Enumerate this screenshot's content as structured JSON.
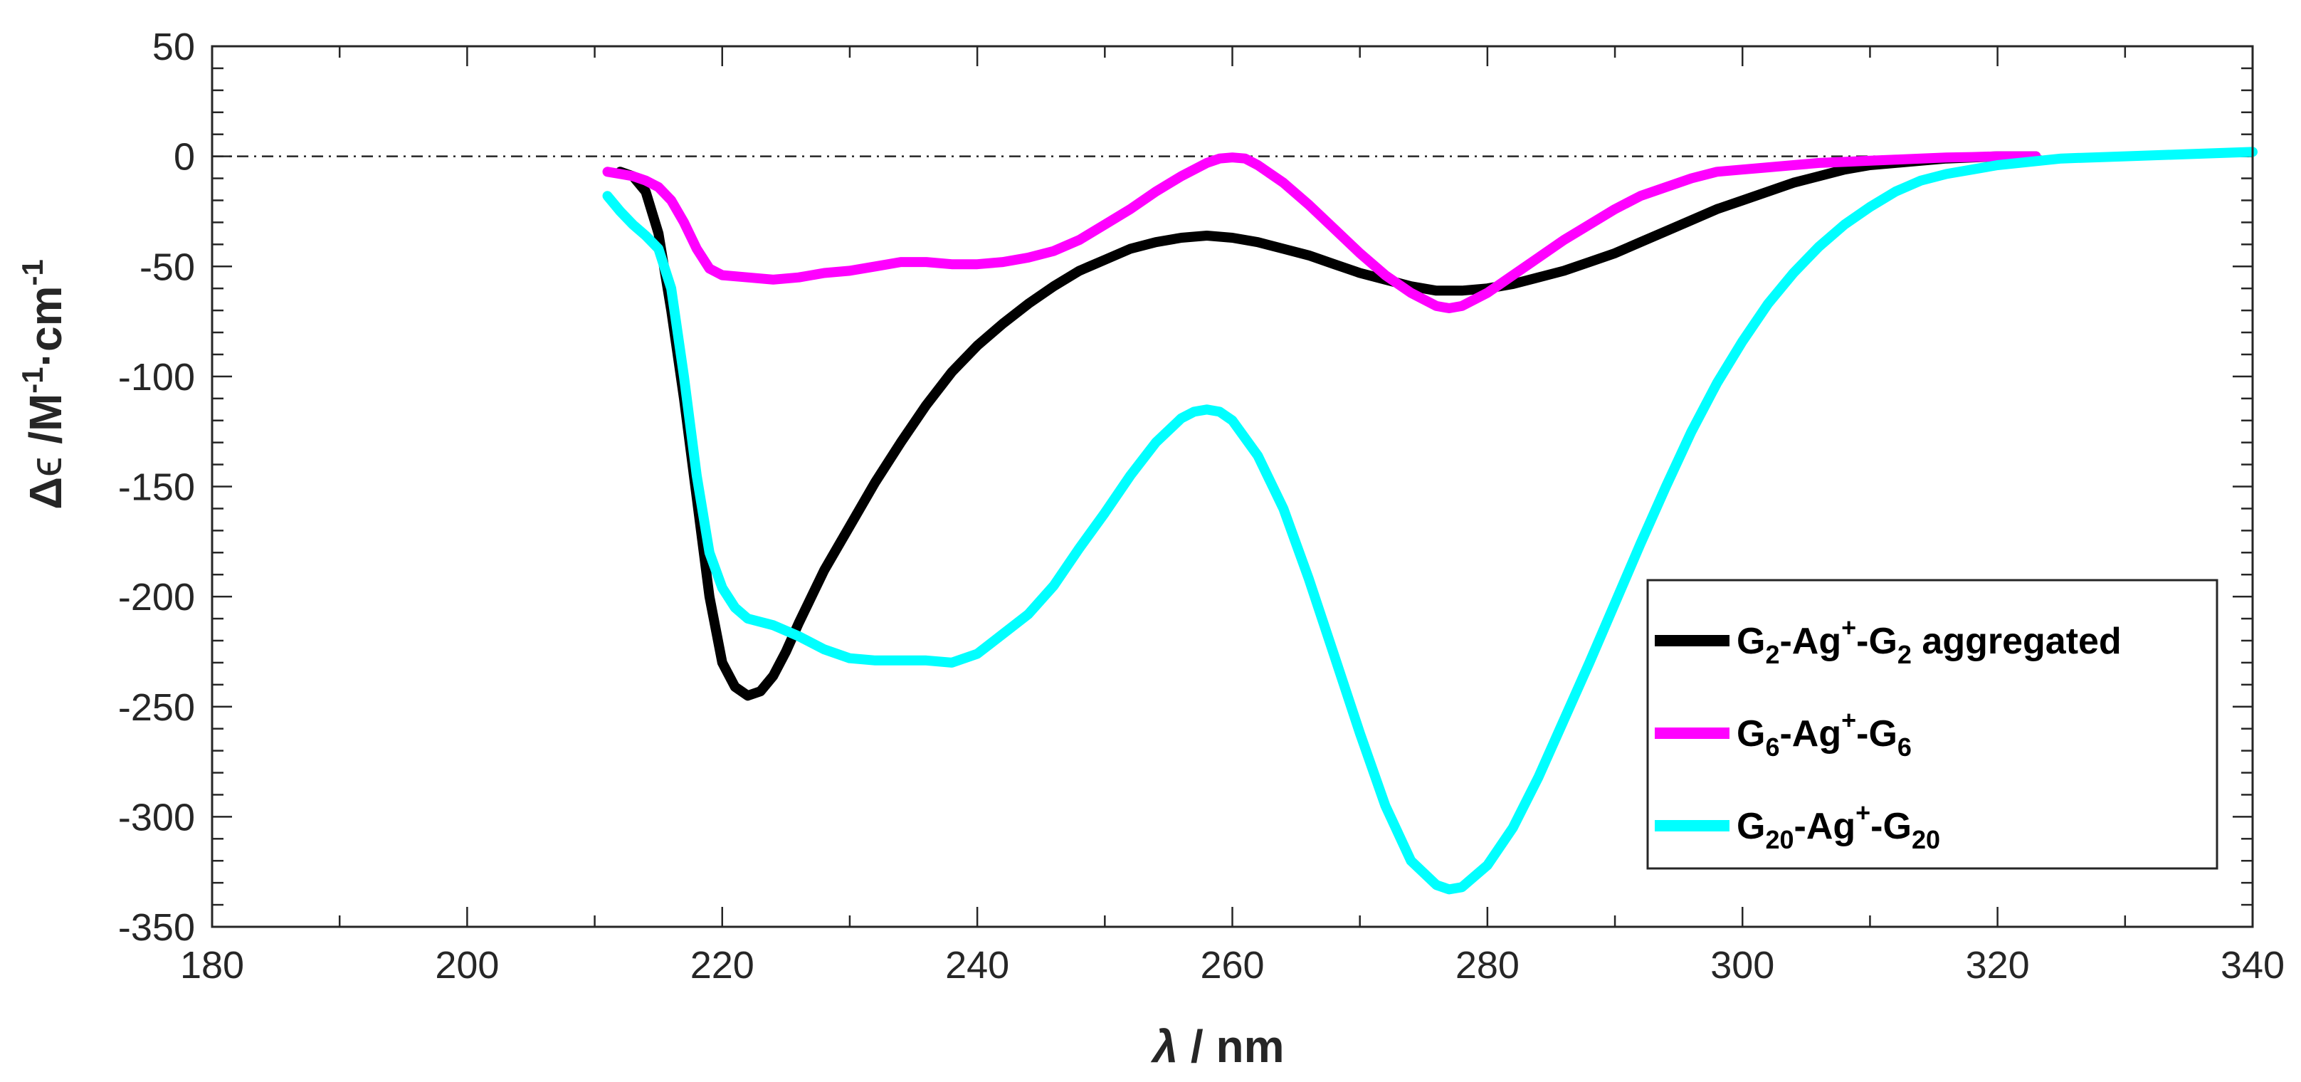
{
  "chart_data": {
    "type": "line",
    "title": "",
    "xlabel": {
      "symbol": "λ",
      "rest": " / nm"
    },
    "ylabel": {
      "delta": "Δ",
      "epsilon": "ϵ",
      "unit1": " /M",
      "sup1": "-1",
      "unit2": "·cm",
      "sup2": "-1"
    },
    "xlim": [
      180,
      340
    ],
    "ylim": [
      -350,
      50
    ],
    "xticks": [
      "180",
      "200",
      "220",
      "240",
      "260",
      "280",
      "300",
      "320",
      "340"
    ],
    "yticks": [
      "50",
      "0",
      "-50",
      "-100",
      "-150",
      "-200",
      "-250",
      "-300",
      "-350"
    ],
    "reference_line_y": 0,
    "legend_position": "lower-right",
    "series": [
      {
        "name": "G2-Ag+-G2 aggregated",
        "label_parts": {
          "a": "G",
          "a_sub": "2",
          "b": "-Ag",
          "b_sup": "+",
          "c": "-G",
          "c_sub": "2",
          "d": " aggregated"
        },
        "color": "#000000",
        "x": [
          212,
          213,
          214,
          215,
          216,
          217,
          218,
          219,
          220,
          221,
          222,
          223,
          224,
          225,
          226,
          228,
          230,
          232,
          234,
          236,
          238,
          240,
          242,
          244,
          246,
          248,
          250,
          252,
          254,
          256,
          258,
          260,
          262,
          264,
          266,
          268,
          270,
          272,
          274,
          276,
          278,
          280,
          282,
          284,
          286,
          288,
          290,
          292,
          294,
          296,
          298,
          300,
          302,
          304,
          306,
          308,
          310,
          312,
          314,
          316,
          318,
          320,
          323
        ],
        "y": [
          -7,
          -9,
          -16,
          -35,
          -70,
          -110,
          -155,
          -200,
          -230,
          -241,
          -245,
          -243,
          -236,
          -225,
          -212,
          -188,
          -168,
          -148,
          -130,
          -113,
          -98,
          -86,
          -76,
          -67,
          -59,
          -52,
          -47,
          -42,
          -39,
          -37,
          -36,
          -37,
          -39,
          -42,
          -45,
          -49,
          -53,
          -56,
          -59,
          -61,
          -61,
          -60,
          -58,
          -55,
          -52,
          -48,
          -44,
          -39,
          -34,
          -29,
          -24,
          -20,
          -16,
          -12,
          -9,
          -6,
          -4,
          -3,
          -2,
          -1,
          -0.5,
          0,
          0
        ]
      },
      {
        "name": "G6-Ag+-G6",
        "label_parts": {
          "a": "G",
          "a_sub": "6",
          "b": "-Ag",
          "b_sup": "+",
          "c": "-G",
          "c_sub": "6",
          "d": ""
        },
        "color": "#ff00ff",
        "x": [
          211,
          212,
          213,
          214,
          215,
          216,
          217,
          218,
          219,
          220,
          222,
          224,
          226,
          228,
          230,
          232,
          234,
          236,
          238,
          240,
          242,
          244,
          246,
          248,
          250,
          252,
          254,
          256,
          258,
          259,
          260,
          261,
          262,
          264,
          266,
          268,
          270,
          272,
          274,
          276,
          277,
          278,
          280,
          282,
          284,
          286,
          288,
          290,
          292,
          294,
          296,
          298,
          300,
          302,
          304,
          306,
          308,
          310,
          312,
          314,
          316,
          318,
          320,
          323
        ],
        "y": [
          -7,
          -8,
          -9,
          -11,
          -14,
          -20,
          -30,
          -42,
          -51,
          -54,
          -55,
          -56,
          -55,
          -53,
          -52,
          -50,
          -48,
          -48,
          -49,
          -49,
          -48,
          -46,
          -43,
          -38,
          -31,
          -24,
          -16,
          -9,
          -3,
          -1,
          -0.5,
          -1,
          -4,
          -12,
          -22,
          -33,
          -44,
          -54,
          -62,
          -68,
          -69,
          -68,
          -62,
          -54,
          -46,
          -38,
          -31,
          -24,
          -18,
          -14,
          -10,
          -7,
          -6,
          -5,
          -4,
          -3,
          -2.5,
          -2,
          -1.5,
          -1,
          -0.5,
          -0.3,
          0,
          0
        ]
      },
      {
        "name": "G20-Ag+-G20",
        "label_parts": {
          "a": "G",
          "a_sub": "20",
          "b": "-Ag",
          "b_sup": "+",
          "c": "-G",
          "c_sub": "20",
          "d": ""
        },
        "color": "#00ffff",
        "x": [
          211,
          212,
          213,
          214,
          215,
          216,
          217,
          218,
          219,
          220,
          221,
          222,
          224,
          226,
          228,
          230,
          232,
          234,
          236,
          238,
          240,
          242,
          244,
          246,
          248,
          250,
          252,
          254,
          256,
          257,
          258,
          259,
          260,
          262,
          264,
          266,
          268,
          270,
          272,
          274,
          276,
          277,
          278,
          280,
          282,
          284,
          286,
          288,
          290,
          292,
          294,
          296,
          298,
          300,
          302,
          304,
          306,
          308,
          310,
          312,
          314,
          316,
          318,
          320,
          325,
          330,
          335,
          340
        ],
        "y": [
          -18,
          -25,
          -31,
          -36,
          -42,
          -60,
          -100,
          -145,
          -180,
          -196,
          -205,
          -210,
          -213,
          -218,
          -224,
          -228,
          -229,
          -229,
          -229,
          -230,
          -226,
          -217,
          -208,
          -195,
          -178,
          -162,
          -145,
          -130,
          -119,
          -116,
          -115,
          -116,
          -120,
          -136,
          -160,
          -192,
          -227,
          -262,
          -295,
          -320,
          -331,
          -333,
          -332,
          -322,
          -305,
          -282,
          -256,
          -230,
          -203,
          -176,
          -150,
          -125,
          -103,
          -84,
          -67,
          -53,
          -41,
          -31,
          -23,
          -16,
          -11,
          -8,
          -6,
          -4,
          -1,
          0,
          1,
          2
        ]
      }
    ]
  }
}
